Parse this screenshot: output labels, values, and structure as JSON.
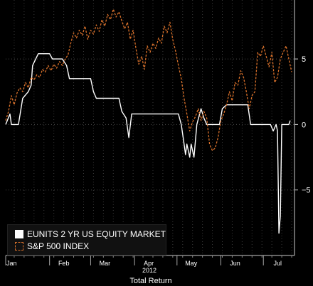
{
  "chart_data": {
    "type": "line",
    "x_axis": {
      "month_labels": [
        "Jan",
        "Feb",
        "Mar",
        "Apr",
        "May",
        "Jun",
        "Jul"
      ],
      "year_label": "2012",
      "title": "Total Return"
    },
    "y_axis": {
      "ticks": [
        5,
        0,
        -5
      ],
      "ylim": [
        -10,
        9.5
      ],
      "side": "right"
    },
    "grid": "dotted",
    "legend": "bottom-left",
    "series": [
      {
        "name": "EUNITS 2 YR US EQUITY MARKET",
        "color": "#ffffff",
        "style": "solid",
        "points": [
          [
            "2012-01-01",
            0
          ],
          [
            "2012-01-04",
            0.8
          ],
          [
            "2012-01-05",
            0
          ],
          [
            "2012-01-10",
            0
          ],
          [
            "2012-01-13",
            2
          ],
          [
            "2012-01-17",
            2.5
          ],
          [
            "2012-01-19",
            3
          ],
          [
            "2012-01-20",
            4.5
          ],
          [
            "2012-01-24",
            5.4
          ],
          [
            "2012-02-01",
            5.4
          ],
          [
            "2012-02-03",
            5
          ],
          [
            "2012-02-10",
            5
          ],
          [
            "2012-02-13",
            4.5
          ],
          [
            "2012-02-14",
            4
          ],
          [
            "2012-02-15",
            3.5
          ],
          [
            "2012-03-01",
            3.5
          ],
          [
            "2012-03-03",
            2.5
          ],
          [
            "2012-03-05",
            2
          ],
          [
            "2012-03-21",
            2
          ],
          [
            "2012-03-23",
            1
          ],
          [
            "2012-03-26",
            0.5
          ],
          [
            "2012-03-28",
            -1
          ],
          [
            "2012-03-30",
            0.8
          ],
          [
            "2012-05-02",
            0.8
          ],
          [
            "2012-05-04",
            0
          ],
          [
            "2012-05-06",
            -1.5
          ],
          [
            "2012-05-07",
            -2.3
          ],
          [
            "2012-05-08",
            -1.5
          ],
          [
            "2012-05-10",
            -2.5
          ],
          [
            "2012-05-11",
            -1.5
          ],
          [
            "2012-05-13",
            -2.5
          ],
          [
            "2012-05-15",
            0
          ],
          [
            "2012-05-18",
            1.2
          ],
          [
            "2012-05-20",
            0.5
          ],
          [
            "2012-05-22",
            0
          ],
          [
            "2012-05-31",
            0
          ],
          [
            "2012-06-02",
            1.2
          ],
          [
            "2012-06-05",
            1.5
          ],
          [
            "2012-06-20",
            1.5
          ],
          [
            "2012-06-22",
            0
          ],
          [
            "2012-07-06",
            0
          ],
          [
            "2012-07-08",
            -0.5
          ],
          [
            "2012-07-10",
            0
          ],
          [
            "2012-07-11",
            -0.5
          ],
          [
            "2012-07-12",
            -8.3
          ],
          [
            "2012-07-13",
            -7
          ],
          [
            "2012-07-14",
            0
          ],
          [
            "2012-07-19",
            0
          ],
          [
            "2012-07-20",
            0.3
          ]
        ]
      },
      {
        "name": "S&P 500 INDEX",
        "color": "#d8702a",
        "style": "dashed",
        "points": [
          [
            "2012-01-01",
            0.3
          ],
          [
            "2012-01-03",
            1
          ],
          [
            "2012-01-05",
            2.2
          ],
          [
            "2012-01-07",
            1.5
          ],
          [
            "2012-01-09",
            2.4
          ],
          [
            "2012-01-11",
            2.8
          ],
          [
            "2012-01-13",
            2.5
          ],
          [
            "2012-01-15",
            3.2
          ],
          [
            "2012-01-17",
            2.8
          ],
          [
            "2012-01-19",
            3.6
          ],
          [
            "2012-01-21",
            3.4
          ],
          [
            "2012-01-23",
            3.8
          ],
          [
            "2012-01-25",
            3.6
          ],
          [
            "2012-01-27",
            4.2
          ],
          [
            "2012-01-29",
            4
          ],
          [
            "2012-01-31",
            4.5
          ],
          [
            "2012-02-02",
            4.1
          ],
          [
            "2012-02-04",
            4.6
          ],
          [
            "2012-02-06",
            4.3
          ],
          [
            "2012-02-08",
            4.8
          ],
          [
            "2012-02-10",
            4.5
          ],
          [
            "2012-02-12",
            5
          ],
          [
            "2012-02-14",
            5.3
          ],
          [
            "2012-02-16",
            6.2
          ],
          [
            "2012-02-18",
            7
          ],
          [
            "2012-02-20",
            6.6
          ],
          [
            "2012-02-22",
            7.2
          ],
          [
            "2012-02-24",
            6.8
          ],
          [
            "2012-02-26",
            7.5
          ],
          [
            "2012-02-28",
            6.5
          ],
          [
            "2012-03-01",
            7.2
          ],
          [
            "2012-03-03",
            6.9
          ],
          [
            "2012-03-05",
            7.6
          ],
          [
            "2012-03-07",
            7.1
          ],
          [
            "2012-03-09",
            8
          ],
          [
            "2012-03-11",
            7.5
          ],
          [
            "2012-03-13",
            8.4
          ],
          [
            "2012-03-15",
            8
          ],
          [
            "2012-03-17",
            8.8
          ],
          [
            "2012-03-19",
            8.2
          ],
          [
            "2012-03-21",
            8.6
          ],
          [
            "2012-03-23",
            7.9
          ],
          [
            "2012-03-25",
            7.3
          ],
          [
            "2012-03-27",
            7.8
          ],
          [
            "2012-03-29",
            6.5
          ],
          [
            "2012-03-31",
            7.2
          ],
          [
            "2012-04-02",
            5.8
          ],
          [
            "2012-04-04",
            4.6
          ],
          [
            "2012-04-06",
            5.2
          ],
          [
            "2012-04-08",
            4.2
          ],
          [
            "2012-04-10",
            6
          ],
          [
            "2012-04-12",
            5.5
          ],
          [
            "2012-04-14",
            6.2
          ],
          [
            "2012-04-16",
            5.8
          ],
          [
            "2012-04-18",
            6.6
          ],
          [
            "2012-04-20",
            6.2
          ],
          [
            "2012-04-22",
            7.5
          ],
          [
            "2012-04-24",
            7
          ],
          [
            "2012-04-26",
            7.8
          ],
          [
            "2012-04-28",
            6.5
          ],
          [
            "2012-04-30",
            5.6
          ],
          [
            "2012-05-02",
            4.5
          ],
          [
            "2012-05-04",
            3.5
          ],
          [
            "2012-05-06",
            2
          ],
          [
            "2012-05-08",
            0.8
          ],
          [
            "2012-05-10",
            -0.5
          ],
          [
            "2012-05-12",
            0.2
          ],
          [
            "2012-05-14",
            0.6
          ],
          [
            "2012-05-16",
            1.2
          ],
          [
            "2012-05-18",
            0.3
          ],
          [
            "2012-05-20",
            1
          ],
          [
            "2012-05-22",
            0.5
          ],
          [
            "2012-05-24",
            -1.5
          ],
          [
            "2012-05-26",
            -2
          ],
          [
            "2012-05-28",
            -1.8
          ],
          [
            "2012-05-30",
            -1
          ],
          [
            "2012-06-01",
            0.3
          ],
          [
            "2012-06-03",
            0.8
          ],
          [
            "2012-06-05",
            1.5
          ],
          [
            "2012-06-07",
            2.5
          ],
          [
            "2012-06-09",
            1.8
          ],
          [
            "2012-06-11",
            3.2
          ],
          [
            "2012-06-13",
            3
          ],
          [
            "2012-06-15",
            4.1
          ],
          [
            "2012-06-17",
            3.6
          ],
          [
            "2012-06-19",
            2.5
          ],
          [
            "2012-06-21",
            1.2
          ],
          [
            "2012-06-23",
            2.2
          ],
          [
            "2012-06-25",
            2.5
          ],
          [
            "2012-06-27",
            5.5
          ],
          [
            "2012-06-29",
            5.2
          ],
          [
            "2012-07-01",
            6
          ],
          [
            "2012-07-03",
            5.2
          ],
          [
            "2012-07-05",
            4.4
          ],
          [
            "2012-07-07",
            5.5
          ],
          [
            "2012-07-09",
            3.2
          ],
          [
            "2012-07-11",
            3.6
          ],
          [
            "2012-07-13",
            5
          ],
          [
            "2012-07-15",
            5.5
          ],
          [
            "2012-07-17",
            6
          ],
          [
            "2012-07-19",
            5
          ],
          [
            "2012-07-21",
            4
          ]
        ]
      }
    ]
  }
}
